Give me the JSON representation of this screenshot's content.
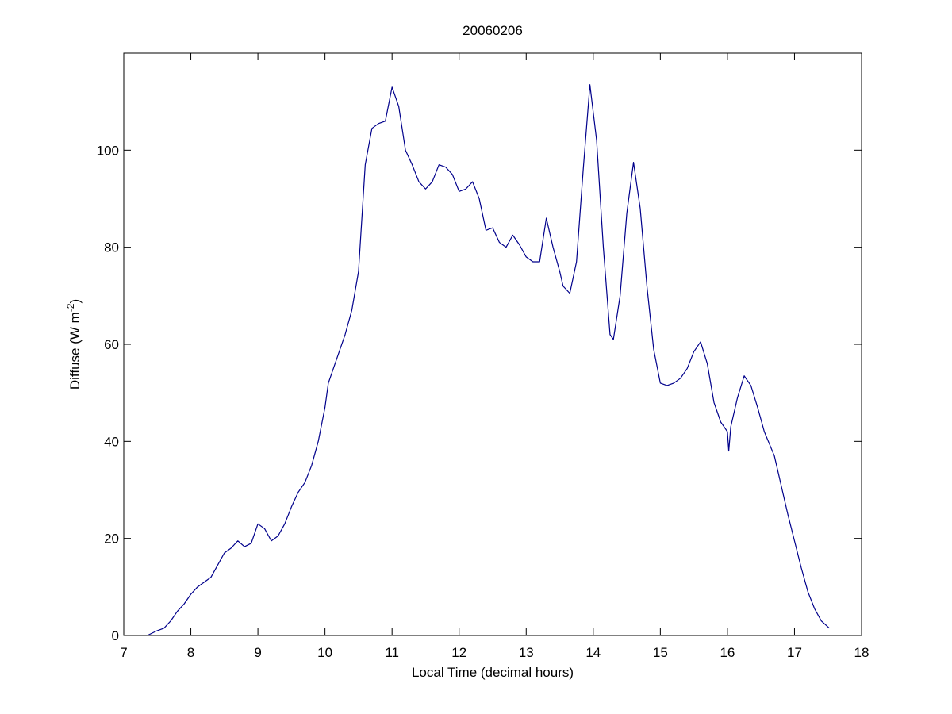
{
  "chart_data": {
    "type": "line",
    "title": "20060206",
    "xlabel": "Local Time (decimal hours)",
    "ylabel": {
      "text": "Diffuse (W m",
      "superscript": "-2",
      "suffix": ")"
    },
    "xlim": [
      7,
      18
    ],
    "xticks": [
      7,
      8,
      9,
      10,
      11,
      12,
      13,
      14,
      15,
      16,
      17,
      18
    ],
    "ylim": [
      0,
      120
    ],
    "yticks": [
      0,
      20,
      40,
      60,
      80,
      100
    ],
    "grid": false,
    "x": [
      7.35,
      7.5,
      7.6,
      7.7,
      7.8,
      7.9,
      8.0,
      8.1,
      8.2,
      8.3,
      8.4,
      8.5,
      8.6,
      8.7,
      8.8,
      8.9,
      9.0,
      9.1,
      9.2,
      9.3,
      9.4,
      9.5,
      9.6,
      9.7,
      9.8,
      9.9,
      10.0,
      10.05,
      10.2,
      10.3,
      10.4,
      10.5,
      10.6,
      10.7,
      10.8,
      10.9,
      11.0,
      11.1,
      11.2,
      11.3,
      11.4,
      11.5,
      11.6,
      11.7,
      11.8,
      11.9,
      12.0,
      12.1,
      12.2,
      12.3,
      12.4,
      12.5,
      12.6,
      12.7,
      12.8,
      12.9,
      13.0,
      13.1,
      13.2,
      13.3,
      13.4,
      13.5,
      13.55,
      13.65,
      13.75,
      13.85,
      13.95,
      14.05,
      14.15,
      14.25,
      14.3,
      14.4,
      14.5,
      14.6,
      14.7,
      14.8,
      14.9,
      15.0,
      15.1,
      15.2,
      15.3,
      15.4,
      15.5,
      15.6,
      15.7,
      15.8,
      15.9,
      16.0,
      16.02,
      16.05,
      16.15,
      16.25,
      16.35,
      16.45,
      16.55,
      16.7,
      16.8,
      16.9,
      17.0,
      17.1,
      17.2,
      17.3,
      17.4,
      17.52
    ],
    "series": [
      {
        "name": "Diffuse",
        "color": "#00008b",
        "values": [
          0,
          1,
          1.5,
          3,
          5,
          6.5,
          8.5,
          10,
          11,
          12,
          14.5,
          17,
          18,
          19.5,
          18.3,
          19,
          23,
          22,
          19.5,
          20.5,
          23,
          26.5,
          29.5,
          31.5,
          35,
          40,
          47,
          52,
          58,
          62,
          67,
          75,
          97,
          104.5,
          105.5,
          106,
          113,
          109,
          100,
          97,
          93.5,
          92,
          93.5,
          97,
          96.5,
          95,
          91.5,
          92,
          93.5,
          90,
          83.5,
          84,
          81,
          80,
          82.5,
          80.5,
          78,
          77,
          77,
          86,
          80,
          75,
          72,
          70.5,
          77,
          96,
          113.5,
          102,
          80,
          62,
          61,
          70,
          87,
          97.5,
          88,
          72,
          59,
          52,
          51.5,
          52,
          53,
          55,
          58.5,
          60.5,
          56,
          48,
          44,
          42,
          38,
          43,
          49,
          53.5,
          51.5,
          47,
          42,
          37,
          31,
          25,
          19.5,
          14,
          9,
          5.5,
          3,
          1.5
        ]
      }
    ]
  }
}
